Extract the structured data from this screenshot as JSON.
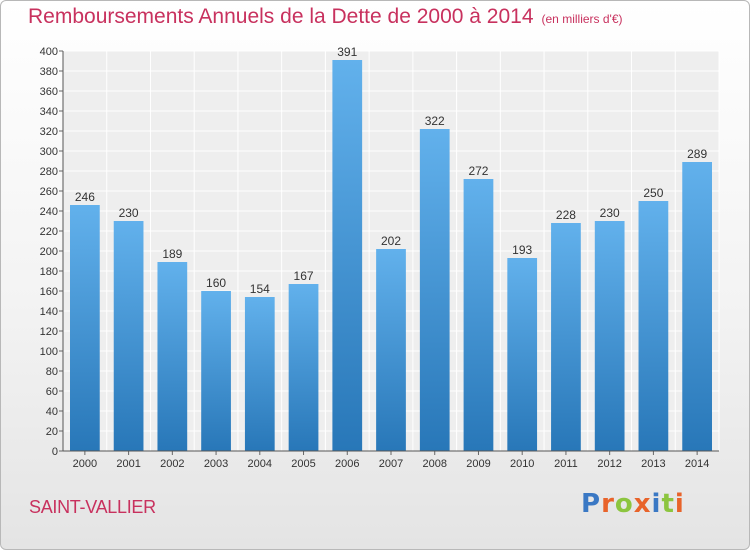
{
  "page": {
    "title": "Remboursements Annuels de la Dette de 2000 à 2014",
    "unit_note": "(en milliers d'€)",
    "place": "SAINT-VALLIER",
    "brand": "Proxiti"
  },
  "chart_data": {
    "type": "bar",
    "title": "Remboursements Annuels de la Dette de 2000 à 2014",
    "subtitle": "(en milliers d'€)",
    "categories": [
      "2000",
      "2001",
      "2002",
      "2003",
      "2004",
      "2005",
      "2006",
      "2007",
      "2008",
      "2009",
      "2010",
      "2011",
      "2012",
      "2013",
      "2014"
    ],
    "values": [
      246,
      230,
      189,
      160,
      154,
      167,
      391,
      202,
      322,
      272,
      193,
      228,
      230,
      250,
      289
    ],
    "ylim": [
      0,
      400
    ],
    "yticks": [
      0,
      20,
      40,
      60,
      80,
      100,
      120,
      140,
      160,
      180,
      200,
      220,
      240,
      260,
      280,
      300,
      320,
      340,
      360,
      380,
      400
    ],
    "grid": true,
    "colors": {
      "bar_top": "#62b1ec",
      "bar_bottom": "#2877b8",
      "title": "#c8315e"
    }
  }
}
